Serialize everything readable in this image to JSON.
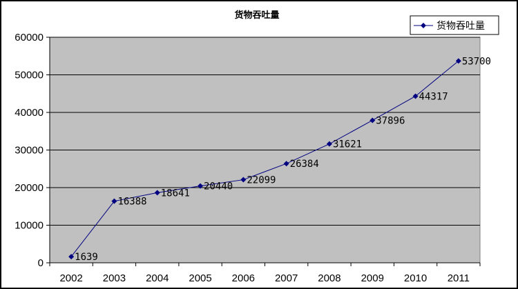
{
  "chart_data": {
    "type": "line",
    "title": "货物吞吐量",
    "categories": [
      "2002",
      "2003",
      "2004",
      "2005",
      "2006",
      "2007",
      "2008",
      "2009",
      "2010",
      "2011"
    ],
    "series": [
      {
        "name": "货物吞吐量",
        "values": [
          1639,
          16388,
          18641,
          20440,
          22099,
          26384,
          31621,
          37896,
          44317,
          53700
        ],
        "color": "#000080"
      }
    ],
    "yticks": [
      "0",
      "10000",
      "20000",
      "30000",
      "40000",
      "50000",
      "60000"
    ],
    "ylim": [
      0,
      60000
    ],
    "xlabel": "",
    "ylabel": "",
    "grid": true,
    "legend": "top-right",
    "data_labels": [
      "1639",
      "16388",
      "18641",
      "20440",
      "22099",
      "26384",
      "31621",
      "37896",
      "44317",
      "53700"
    ],
    "plot_background": "#c0c0c0"
  }
}
